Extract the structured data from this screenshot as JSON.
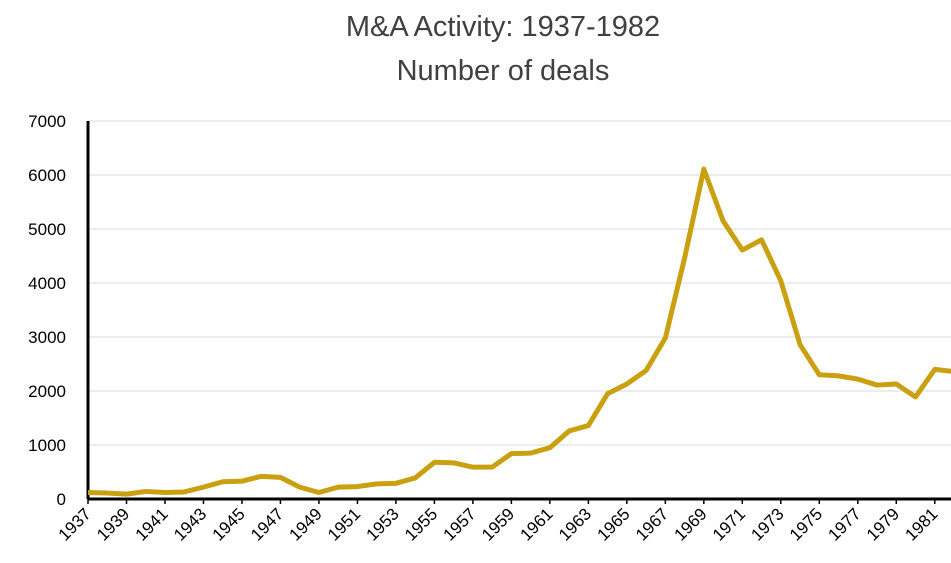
{
  "chart_data": {
    "type": "line",
    "title": "M&A Activity: 1937-1982",
    "subtitle": "Number of deals",
    "x": [
      1937,
      1938,
      1939,
      1940,
      1941,
      1942,
      1943,
      1944,
      1945,
      1946,
      1947,
      1948,
      1949,
      1950,
      1951,
      1952,
      1953,
      1954,
      1955,
      1956,
      1957,
      1958,
      1959,
      1960,
      1961,
      1962,
      1963,
      1964,
      1965,
      1966,
      1967,
      1968,
      1969,
      1970,
      1971,
      1972,
      1973,
      1974,
      1975,
      1976,
      1977,
      1978,
      1979,
      1980,
      1981,
      1982
    ],
    "series": [
      {
        "name": "Number of deals",
        "color": "#c9a010",
        "values": [
          120,
          110,
          90,
          140,
          120,
          130,
          220,
          320,
          330,
          420,
          400,
          220,
          120,
          220,
          230,
          280,
          290,
          390,
          680,
          670,
          590,
          590,
          840,
          850,
          950,
          1260,
          1360,
          1950,
          2130,
          2380,
          2980,
          4460,
          6110,
          5150,
          4610,
          4800,
          4040,
          2860,
          2300,
          2280,
          2220,
          2110,
          2130,
          1890,
          2400,
          2360
        ]
      }
    ],
    "xlim": [
      1937,
      1982
    ],
    "xticks": [
      1937,
      1939,
      1941,
      1943,
      1945,
      1947,
      1949,
      1951,
      1953,
      1955,
      1957,
      1959,
      1961,
      1963,
      1965,
      1967,
      1969,
      1971,
      1973,
      1975,
      1977,
      1979,
      1981
    ],
    "ylim": [
      0,
      7000
    ],
    "yticks": [
      0,
      1000,
      2000,
      3000,
      4000,
      5000,
      6000,
      7000
    ],
    "grid": true
  }
}
